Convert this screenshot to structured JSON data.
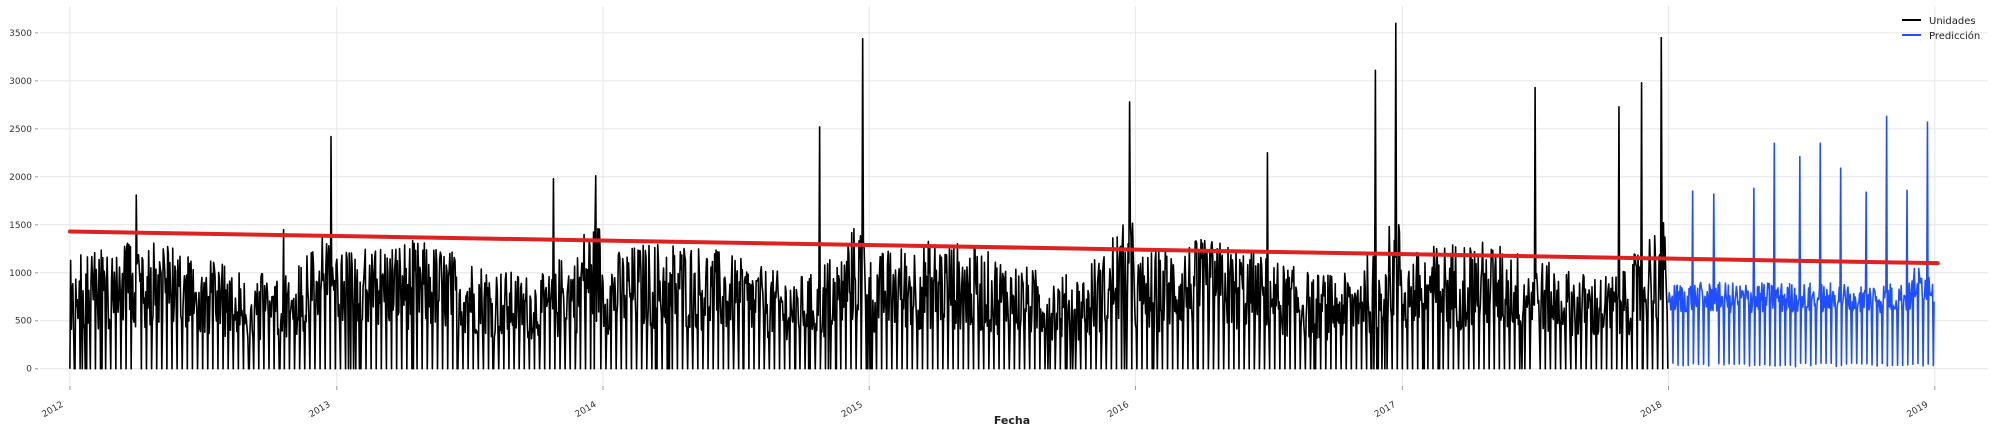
{
  "chart_data": {
    "type": "line",
    "title": "",
    "xlabel": "Fecha",
    "ylabel": "",
    "xlim": [
      "2011-11-21",
      "2019-03-15"
    ],
    "ylim": [
      -180,
      3780
    ],
    "x_ticks": [
      "2012",
      "2013",
      "2014",
      "2015",
      "2016",
      "2017",
      "2018",
      "2019"
    ],
    "y_ticks": [
      0,
      500,
      1000,
      1500,
      2000,
      2500,
      3000,
      3500
    ],
    "grid": true,
    "legend_position": "top-right",
    "series": [
      {
        "name": "Unidades",
        "color": "#000000",
        "kind": "daily-units",
        "start": "2012-01-01",
        "end": "2017-12-31",
        "weekly_zeros": true,
        "peaks": [
          {
            "x": "2012-04-01",
            "y": 1810
          },
          {
            "x": "2012-10-20",
            "y": 1450
          },
          {
            "x": "2012-12-24",
            "y": 2420
          },
          {
            "x": "2013-10-25",
            "y": 1980
          },
          {
            "x": "2013-12-22",
            "y": 2010
          },
          {
            "x": "2014-10-25",
            "y": 2520
          },
          {
            "x": "2014-12-23",
            "y": 3440
          },
          {
            "x": "2015-12-24",
            "y": 2780
          },
          {
            "x": "2016-06-30",
            "y": 2250
          },
          {
            "x": "2016-11-25",
            "y": 3110
          },
          {
            "x": "2016-12-23",
            "y": 3600
          },
          {
            "x": "2017-07-02",
            "y": 2930
          },
          {
            "x": "2017-10-25",
            "y": 2730
          },
          {
            "x": "2017-11-25",
            "y": 2980
          },
          {
            "x": "2017-12-22",
            "y": 3450
          }
        ]
      },
      {
        "name": "Predicción",
        "color": "#1f4fff",
        "kind": "forecast",
        "start": "2018-01-01",
        "end": "2018-12-31",
        "peaks": [
          {
            "x": "2018-02-03",
            "y": 1850
          },
          {
            "x": "2018-03-04",
            "y": 1820
          },
          {
            "x": "2018-04-28",
            "y": 1880
          },
          {
            "x": "2018-05-26",
            "y": 2350
          },
          {
            "x": "2018-06-30",
            "y": 2210
          },
          {
            "x": "2018-07-28",
            "y": 2350
          },
          {
            "x": "2018-08-25",
            "y": 2090
          },
          {
            "x": "2018-09-29",
            "y": 1840
          },
          {
            "x": "2018-10-27",
            "y": 2630
          },
          {
            "x": "2018-11-24",
            "y": 1860
          },
          {
            "x": "2018-12-22",
            "y": 2570
          }
        ]
      }
    ],
    "trend": {
      "color": "#dd2222",
      "points": [
        {
          "x": "2012-01-01",
          "y": 1430
        },
        {
          "x": "2019-01-05",
          "y": 1100
        }
      ]
    }
  }
}
